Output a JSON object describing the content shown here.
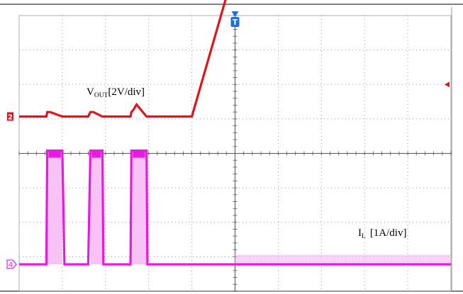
{
  "chart_data": {
    "type": "line",
    "grid": true,
    "divisions": {
      "x": 10,
      "y": 8
    },
    "x": [
      0,
      0.63,
      0.65,
      0.72,
      1.0,
      1.05,
      1.6,
      1.65,
      1.7,
      1.72,
      1.93,
      1.95,
      2.0,
      2.58,
      2.6,
      2.65,
      2.72,
      2.95,
      2.97,
      3.0,
      4.0,
      5.0,
      10.0
    ],
    "series": [
      {
        "name": "VOUT",
        "color": "#e0141c",
        "label_main": "V",
        "label_sub": "OUT",
        "label_scale": "[2V/div]",
        "channel": "2",
        "values": [
          0,
          0,
          0.13,
          0.13,
          0,
          0,
          0,
          0.13,
          0.13,
          0.13,
          0,
          0,
          0,
          0,
          0.13,
          0.2,
          0.35,
          0,
          0,
          0,
          0,
          4.35,
          4.35
        ]
      },
      {
        "name": "IL",
        "color": "#e81ae0",
        "label_main": "I",
        "label_sub": "L",
        "label_scale": "[1A/div]",
        "channel": "4",
        "values": [
          0,
          0,
          3.3,
          3.3,
          3.3,
          0,
          0,
          3.3,
          3.3,
          3.3,
          3.3,
          0,
          0,
          0,
          3.3,
          3.3,
          3.3,
          3.3,
          0,
          0,
          0,
          0,
          0
        ]
      }
    ],
    "trigger": {
      "label": "T",
      "x_div": 5.0
    }
  },
  "colors": {
    "grid": "#9a9a9a",
    "axis": "#555555",
    "trigger": "#1e6fd9",
    "ch2": "#e0141c",
    "ch4": "#e81ae0",
    "ch4_fill": "#f6b8f2"
  }
}
